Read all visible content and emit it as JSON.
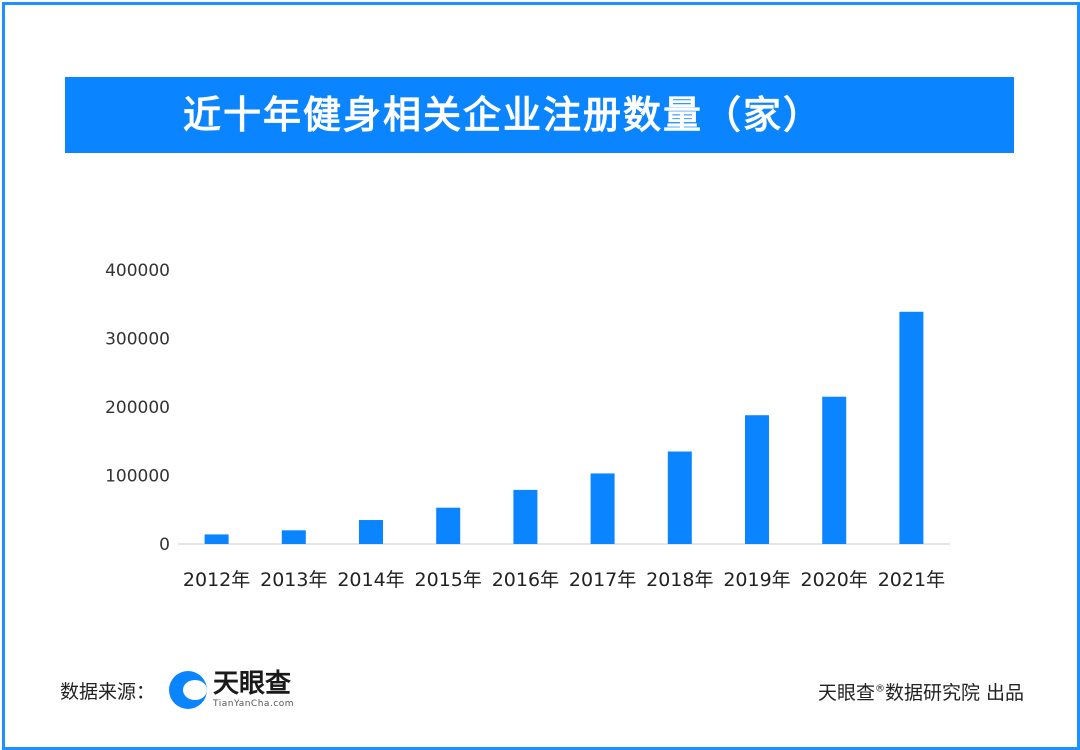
{
  "title": "近十年健身相关企业注册数量（家）",
  "chart_data": {
    "type": "bar",
    "categories": [
      "2012年",
      "2013年",
      "2014年",
      "2015年",
      "2016年",
      "2017年",
      "2018年",
      "2019年",
      "2020年",
      "2021年"
    ],
    "values": [
      14000,
      20000,
      35000,
      53000,
      79000,
      103000,
      135000,
      188000,
      215000,
      339000
    ],
    "ylim": [
      0,
      400000
    ],
    "yticks": [
      "0",
      "100000",
      "200000",
      "300000",
      "400000"
    ],
    "grid": false,
    "title": "近十年健身相关企业注册数量（家）",
    "xlabel": "",
    "ylabel": "",
    "bar_color": "#0a84ff"
  },
  "footer": {
    "source_label": "数据来源：",
    "logo_cn": "天眼查",
    "logo_en": "TianYanCha.com",
    "credit_brand": "天眼查",
    "credit_reg": "®",
    "credit_rest": "数据研究院 出品"
  },
  "colors": {
    "accent": "#0a84ff",
    "border": "#1e90ff"
  }
}
